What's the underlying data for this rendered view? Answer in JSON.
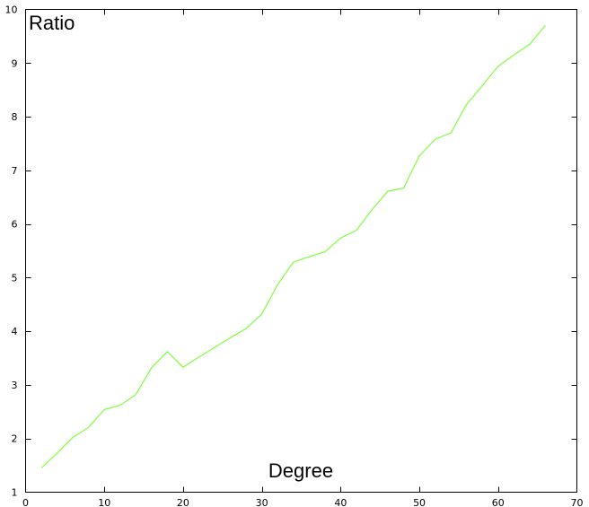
{
  "chart_data": {
    "type": "line",
    "title": "",
    "xlabel": "Degree",
    "ylabel": "Ratio",
    "xlim": [
      0,
      70
    ],
    "ylim": [
      1,
      10
    ],
    "xticks": [
      0,
      10,
      20,
      30,
      40,
      50,
      60,
      70
    ],
    "yticks": [
      1,
      2,
      3,
      4,
      5,
      6,
      7,
      8,
      9,
      10
    ],
    "grid": false,
    "legend": "none",
    "series": [
      {
        "color": "#80ff40",
        "x": [
          2,
          4,
          6,
          8,
          10,
          12,
          14,
          16,
          18,
          20,
          22,
          24,
          26,
          28,
          30,
          32,
          34,
          36,
          38,
          40,
          42,
          44,
          46,
          48,
          50,
          52,
          54,
          56,
          58,
          60,
          62,
          64,
          66
        ],
        "y": [
          1.45,
          1.73,
          2.02,
          2.21,
          2.54,
          2.62,
          2.82,
          3.32,
          3.62,
          3.33,
          3.52,
          3.7,
          3.88,
          4.05,
          4.32,
          4.87,
          5.29,
          5.39,
          5.48,
          5.74,
          5.88,
          6.27,
          6.61,
          6.67,
          7.27,
          7.58,
          7.7,
          8.23,
          8.58,
          8.94,
          9.15,
          9.35,
          9.7
        ]
      }
    ]
  }
}
